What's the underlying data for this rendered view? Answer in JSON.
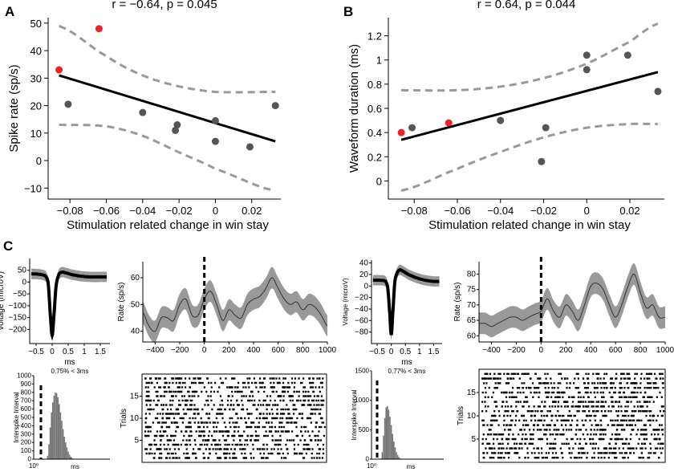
{
  "panel_labels": [
    "A",
    "B",
    "C"
  ],
  "chart_data": [
    {
      "id": "A",
      "type": "scatter",
      "title": "r = −0.64, p = 0.045",
      "xlabel": "Stimulation related change in win stay",
      "ylabel": "Spike rate (sp/s)",
      "xlim": [
        -0.092,
        0.036
      ],
      "ylim": [
        -14,
        52
      ],
      "xticks": [
        -0.08,
        -0.06,
        -0.04,
        -0.02,
        0,
        0.02
      ],
      "xtick_labels": [
        "−0.08",
        "−0.06",
        "−0.04",
        "−0.02",
        "0",
        "0.02"
      ],
      "yticks": [
        -10,
        0,
        10,
        20,
        30,
        40,
        50
      ],
      "ytick_labels": [
        "−10",
        "0",
        "10",
        "20",
        "30",
        "40",
        "50"
      ],
      "points": [
        {
          "x": -0.086,
          "y": 33,
          "highlight": true
        },
        {
          "x": -0.064,
          "y": 48,
          "highlight": true
        },
        {
          "x": -0.081,
          "y": 20.5,
          "highlight": false
        },
        {
          "x": -0.04,
          "y": 17.5,
          "highlight": false
        },
        {
          "x": -0.022,
          "y": 11,
          "highlight": false
        },
        {
          "x": -0.021,
          "y": 13,
          "highlight": false
        },
        {
          "x": 0.0,
          "y": 14.5,
          "highlight": false
        },
        {
          "x": 0.0,
          "y": 7,
          "highlight": false
        },
        {
          "x": 0.019,
          "y": 5,
          "highlight": false
        },
        {
          "x": 0.033,
          "y": 20,
          "highlight": false
        }
      ],
      "fit": {
        "x": [
          -0.086,
          0.033
        ],
        "y": [
          31,
          7
        ]
      },
      "ci_upper": {
        "x": [
          -0.086,
          -0.06,
          -0.04,
          -0.02,
          0.0,
          0.033
        ],
        "y": [
          49,
          38,
          31,
          27,
          25,
          25
        ]
      },
      "ci_lower": {
        "x": [
          -0.086,
          -0.06,
          -0.04,
          -0.02,
          0.0,
          0.033
        ],
        "y": [
          13,
          12.5,
          9,
          3,
          -3,
          -11
        ]
      }
    },
    {
      "id": "B",
      "type": "scatter",
      "title": "r = 0.64, p = 0.044",
      "xlabel": "Stimulation related change in win stay",
      "ylabel": "Waveform duration (ms)",
      "xlim": [
        -0.092,
        0.036
      ],
      "ylim": [
        -0.15,
        1.35
      ],
      "xticks": [
        -0.08,
        -0.06,
        -0.04,
        -0.02,
        0,
        0.02
      ],
      "xtick_labels": [
        "−0.08",
        "−0.06",
        "−0.04",
        "−0.02",
        "0",
        "0.02"
      ],
      "yticks": [
        0,
        0.2,
        0.4,
        0.6,
        0.8,
        1,
        1.2
      ],
      "ytick_labels": [
        "0",
        "0.2",
        "0.4",
        "0.6",
        "0.8",
        "1",
        "1.2"
      ],
      "points": [
        {
          "x": -0.086,
          "y": 0.4,
          "highlight": true
        },
        {
          "x": -0.064,
          "y": 0.48,
          "highlight": true
        },
        {
          "x": -0.081,
          "y": 0.44,
          "highlight": false
        },
        {
          "x": -0.04,
          "y": 0.5,
          "highlight": false
        },
        {
          "x": -0.021,
          "y": 0.16,
          "highlight": false
        },
        {
          "x": -0.019,
          "y": 0.44,
          "highlight": false
        },
        {
          "x": 0.0,
          "y": 1.04,
          "highlight": false
        },
        {
          "x": 0.0,
          "y": 0.92,
          "highlight": false
        },
        {
          "x": 0.019,
          "y": 1.04,
          "highlight": false
        },
        {
          "x": 0.033,
          "y": 0.74,
          "highlight": false
        }
      ],
      "fit": {
        "x": [
          -0.086,
          0.033
        ],
        "y": [
          0.34,
          0.9
        ]
      },
      "ci_upper": {
        "x": [
          -0.086,
          -0.06,
          -0.04,
          -0.02,
          0.0,
          0.02,
          0.033
        ],
        "y": [
          0.75,
          0.75,
          0.78,
          0.85,
          0.97,
          1.15,
          1.3
        ]
      },
      "ci_lower": {
        "x": [
          -0.086,
          -0.06,
          -0.04,
          -0.02,
          0.0,
          0.02,
          0.033
        ],
        "y": [
          -0.08,
          0.1,
          0.24,
          0.36,
          0.44,
          0.47,
          0.47
        ]
      }
    },
    {
      "id": "C1-waveform",
      "type": "line",
      "xlabel": "ms",
      "ylabel": "Voltage (microV)",
      "annotation": "0.75% < 3ms",
      "xlim": [
        -0.7,
        1.8
      ],
      "ylim": [
        -260,
        100
      ],
      "xticks": [
        -0.5,
        0,
        0.5,
        1,
        1.5
      ],
      "xtick_labels": [
        "−0.5",
        "0",
        "0.5",
        "1",
        "1.5"
      ],
      "yticks": [
        -200,
        -150,
        -100,
        -50,
        0,
        50
      ],
      "ytick_labels": [
        "−200",
        "−150",
        "−100",
        "−50",
        "0",
        "50"
      ],
      "x": [
        -0.65,
        -0.4,
        -0.2,
        -0.12,
        -0.05,
        0,
        0.05,
        0.12,
        0.2,
        0.3,
        0.4,
        0.6,
        0.9,
        1.2,
        1.5,
        1.7
      ],
      "y": [
        35,
        33,
        25,
        -10,
        -150,
        -225,
        -150,
        -20,
        30,
        42,
        40,
        32,
        25,
        22,
        22,
        22
      ],
      "band": 22
    },
    {
      "id": "C1-rate",
      "type": "line",
      "xlabel": "",
      "ylabel": "Rate (sp/s)",
      "xlim": [
        -500,
        1000
      ],
      "ylim": [
        36,
        66
      ],
      "xticks": [
        -400,
        -200,
        0,
        200,
        400,
        600,
        800,
        1000
      ],
      "xtick_labels": [
        "−400",
        "−200",
        "0",
        "200",
        "400",
        "600",
        "800",
        "1000"
      ],
      "yticks": [
        40,
        50,
        60
      ],
      "ytick_labels": [
        "40",
        "50",
        "60"
      ],
      "x": [
        -500,
        -450,
        -400,
        -350,
        -300,
        -250,
        -200,
        -150,
        -100,
        -50,
        0,
        50,
        100,
        150,
        200,
        250,
        300,
        350,
        400,
        450,
        500,
        550,
        600,
        650,
        700,
        750,
        800,
        850,
        900,
        950,
        1000
      ],
      "y": [
        47,
        42,
        40,
        45,
        45,
        44,
        50,
        52,
        46,
        46,
        52,
        55,
        50,
        44,
        48,
        46,
        45,
        50,
        52,
        53,
        56,
        60,
        56,
        52,
        50,
        51,
        48,
        50,
        49,
        46,
        42
      ],
      "band": 4,
      "event_x": 0
    },
    {
      "id": "C1-isi",
      "type": "bar",
      "xlabel": "ms",
      "ylabel": "Interspike Interval",
      "xtick_label": "10⁰",
      "ylim": [
        0,
        1000
      ],
      "yticks": [
        0,
        100,
        200,
        300,
        400,
        500,
        600,
        700,
        800,
        900,
        1000
      ],
      "ytick_labels": [
        "0",
        "100",
        "200",
        "300",
        "400",
        "500",
        "600",
        "700",
        "800",
        "900",
        "1000"
      ],
      "values": [
        5,
        40,
        180,
        380,
        560,
        680,
        760,
        800,
        790,
        740,
        660,
        560,
        460,
        360,
        270,
        200,
        140,
        90,
        55,
        30,
        15,
        6
      ]
    },
    {
      "id": "C1-raster",
      "type": "scatter",
      "ylabel": "Trials",
      "ylim": [
        0,
        20
      ],
      "yticks": [
        5,
        10,
        15
      ],
      "ytick_labels": [
        "5",
        "10",
        "15"
      ],
      "trials": 19,
      "spikes_per_trial": 62,
      "seed": 7
    },
    {
      "id": "C2-waveform",
      "type": "line",
      "xlabel": "ms",
      "ylabel": "Voltage (microV)",
      "annotation": "0.77% < 3ms",
      "xlim": [
        -0.7,
        1.8
      ],
      "ylim": [
        -100,
        45
      ],
      "xticks": [
        -0.5,
        0,
        0.5,
        1,
        1.5
      ],
      "xtick_labels": [
        "−0.5",
        "0",
        "0.5",
        "1",
        "1.5"
      ],
      "yticks": [
        -80,
        -60,
        -40,
        -20,
        0,
        20,
        40
      ],
      "ytick_labels": [
        "−80",
        "−60",
        "−40",
        "−20",
        "0",
        "20",
        "40"
      ],
      "x": [
        -0.65,
        -0.4,
        -0.2,
        -0.12,
        -0.05,
        0,
        0.05,
        0.12,
        0.2,
        0.3,
        0.4,
        0.6,
        0.9,
        1.2,
        1.5,
        1.7
      ],
      "y": [
        10,
        10,
        8,
        -5,
        -50,
        -85,
        -50,
        5,
        22,
        28,
        26,
        20,
        14,
        10,
        8,
        8
      ],
      "band": 9
    },
    {
      "id": "C2-rate",
      "type": "line",
      "xlabel": "",
      "ylabel": "Rate (sp/s)",
      "xlim": [
        -500,
        1000
      ],
      "ylim": [
        58,
        84
      ],
      "xticks": [
        -400,
        -200,
        0,
        200,
        400,
        600,
        800,
        1000
      ],
      "xtick_labels": [
        "−400",
        "−200",
        "0",
        "200",
        "400",
        "600",
        "800",
        "1000"
      ],
      "yticks": [
        60,
        65,
        70,
        75,
        80
      ],
      "ytick_labels": [
        "60",
        "65",
        "70",
        "75",
        "80"
      ],
      "x": [
        -500,
        -450,
        -400,
        -350,
        -300,
        -250,
        -200,
        -150,
        -100,
        -50,
        0,
        50,
        100,
        150,
        200,
        250,
        300,
        350,
        400,
        450,
        500,
        550,
        600,
        650,
        700,
        750,
        800,
        850,
        900,
        950,
        1000
      ],
      "y": [
        64,
        64,
        63,
        64,
        65,
        66,
        66,
        65,
        66,
        67,
        68,
        72,
        68,
        66,
        70,
        68,
        65,
        70,
        76,
        77,
        75,
        70,
        66,
        70,
        76,
        80,
        74,
        69,
        70,
        66,
        66
      ],
      "band": 3.5,
      "event_x": 0
    },
    {
      "id": "C2-isi",
      "type": "bar",
      "xlabel": "ms",
      "ylabel": "Interspike Interval",
      "xtick_label": "10⁰",
      "ylim": [
        0,
        1500
      ],
      "yticks": [
        0,
        500,
        1000,
        1500
      ],
      "ytick_labels": [
        "0",
        "500",
        "1000",
        "1500"
      ],
      "values": [
        10,
        120,
        400,
        700,
        880,
        900,
        840,
        720,
        580,
        430,
        300,
        200,
        120,
        70,
        35,
        15,
        5
      ]
    },
    {
      "id": "C2-raster",
      "type": "scatter",
      "ylabel": "Trials",
      "ylim": [
        0,
        20
      ],
      "yticks": [
        5,
        10,
        15
      ],
      "ytick_labels": [
        "5",
        "10",
        "15"
      ],
      "trials": 19,
      "spikes_per_trial": 68,
      "seed": 13
    }
  ]
}
